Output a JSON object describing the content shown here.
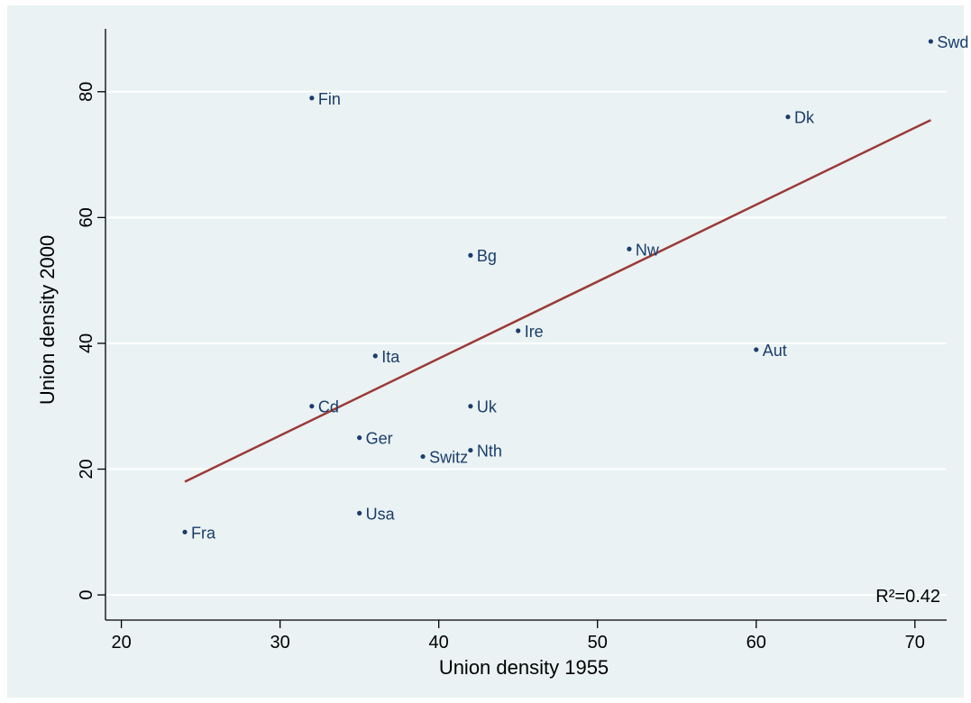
{
  "chart_data": {
    "type": "scatter",
    "title": "",
    "xlabel": "Union density 1955",
    "ylabel": "Union density 2000",
    "xlim": [
      19,
      72
    ],
    "ylim": [
      -4,
      90
    ],
    "xticks": [
      20,
      30,
      40,
      50,
      60,
      70
    ],
    "yticks": [
      0,
      20,
      40,
      60,
      80
    ],
    "grid": "horizontal",
    "legend": "none",
    "points": [
      {
        "label": "Swd",
        "x": 71,
        "y": 88
      },
      {
        "label": "Fin",
        "x": 32,
        "y": 79
      },
      {
        "label": "Dk",
        "x": 62,
        "y": 76
      },
      {
        "label": "Nw",
        "x": 52,
        "y": 55
      },
      {
        "label": "Bg",
        "x": 42,
        "y": 54
      },
      {
        "label": "Ire",
        "x": 45,
        "y": 42
      },
      {
        "label": "Aut",
        "x": 60,
        "y": 39
      },
      {
        "label": "Ita",
        "x": 36,
        "y": 38
      },
      {
        "label": "Cd",
        "x": 32,
        "y": 30
      },
      {
        "label": "Uk",
        "x": 42,
        "y": 30
      },
      {
        "label": "Ger",
        "x": 35,
        "y": 25
      },
      {
        "label": "Nth",
        "x": 42,
        "y": 23
      },
      {
        "label": "Switz",
        "x": 39,
        "y": 22
      },
      {
        "label": "Usa",
        "x": 35,
        "y": 13
      },
      {
        "label": "Fra",
        "x": 24,
        "y": 10
      }
    ],
    "fit_line": {
      "x": [
        24,
        71
      ],
      "y": [
        18,
        75.5
      ]
    },
    "annotation": "R²=0.42",
    "colors": {
      "background": "#eaf2f3",
      "plot_area": "#eaf2f3",
      "gridline": "#ffffff",
      "marker": "#1a3d6b",
      "point_label": "#1a3d6b",
      "fit_line": "#9b3a37"
    }
  }
}
